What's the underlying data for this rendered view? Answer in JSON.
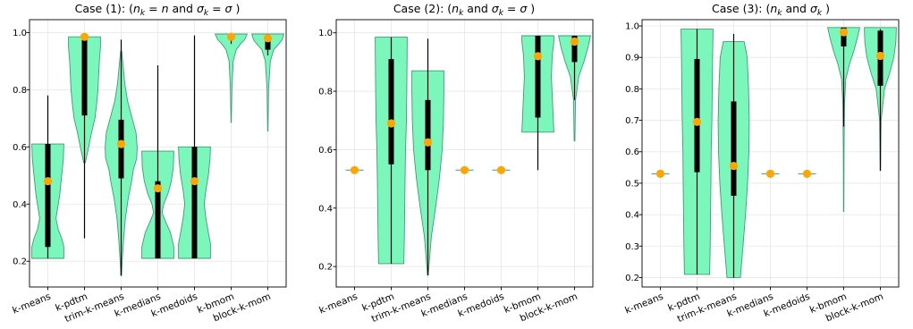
{
  "colors": {
    "violin_fill": "#7cf7bc",
    "violin_edge": "#3b9d74",
    "box": "#000000",
    "whisker": "#000000",
    "mean_marker": "#ffa500",
    "grid": "#e6e6e6",
    "axes": "#000000"
  },
  "chart_data": [
    {
      "type": "violin",
      "title": "Case (1): (n_k = n and σ_k = σ )",
      "title_parts": [
        {
          "t": "Case (1): (",
          "s": "n"
        },
        {
          "t": "n",
          "s": "i"
        },
        {
          "t": "k",
          "s": "sub"
        },
        {
          "t": " = ",
          "s": "n"
        },
        {
          "t": "n",
          "s": "i"
        },
        {
          "t": " and ",
          "s": "n"
        },
        {
          "t": "σ",
          "s": "i"
        },
        {
          "t": "k",
          "s": "sub"
        },
        {
          "t": " = ",
          "s": "n"
        },
        {
          "t": "σ",
          "s": "i"
        },
        {
          "t": " )",
          "s": "n"
        }
      ],
      "categories": [
        "k-means",
        "k-pdtm",
        "trim-k-means",
        "k-medians",
        "k-medoids",
        "k-bmom",
        "block-k-mom"
      ],
      "ylim": [
        0.11,
        1.045
      ],
      "yticks": [
        "0.2",
        "0.4",
        "0.6",
        "0.8",
        "1.0"
      ],
      "grid": true,
      "violins": [
        {
          "profile": [
            [
              0.21,
              0.95
            ],
            [
              0.25,
              0.95
            ],
            [
              0.28,
              0.82
            ],
            [
              0.31,
              0.62
            ],
            [
              0.35,
              0.48
            ],
            [
              0.38,
              0.56
            ],
            [
              0.43,
              0.7
            ],
            [
              0.5,
              0.82
            ],
            [
              0.56,
              0.92
            ],
            [
              0.61,
              0.95
            ]
          ],
          "q1": 0.25,
          "q3": 0.61,
          "min": 0.21,
          "max": 0.78,
          "mean": 0.48
        },
        {
          "profile": [
            [
              0.545,
              0.05
            ],
            [
              0.6,
              0.25
            ],
            [
              0.65,
              0.42
            ],
            [
              0.7,
              0.62
            ],
            [
              0.75,
              0.72
            ],
            [
              0.8,
              0.8
            ],
            [
              0.85,
              0.84
            ],
            [
              0.9,
              0.88
            ],
            [
              0.95,
              0.95
            ],
            [
              0.985,
              0.95
            ]
          ],
          "q1": 0.71,
          "q3": 0.975,
          "min": 0.28,
          "max": 0.99,
          "mean": 0.985
        },
        {
          "profile": [
            [
              0.15,
              0.02
            ],
            [
              0.2,
              0.06
            ],
            [
              0.28,
              0.15
            ],
            [
              0.35,
              0.25
            ],
            [
              0.42,
              0.42
            ],
            [
              0.48,
              0.62
            ],
            [
              0.52,
              0.72
            ],
            [
              0.56,
              0.92
            ],
            [
              0.6,
              0.95
            ],
            [
              0.65,
              0.88
            ],
            [
              0.7,
              0.65
            ],
            [
              0.76,
              0.38
            ],
            [
              0.82,
              0.22
            ],
            [
              0.88,
              0.12
            ],
            [
              0.935,
              0.03
            ]
          ],
          "q1": 0.49,
          "q3": 0.695,
          "min": 0.15,
          "max": 0.975,
          "mean": 0.61
        },
        {
          "profile": [
            [
              0.21,
              0.95
            ],
            [
              0.25,
              0.95
            ],
            [
              0.3,
              0.75
            ],
            [
              0.34,
              0.45
            ],
            [
              0.37,
              0.25
            ],
            [
              0.4,
              0.35
            ],
            [
              0.44,
              0.62
            ],
            [
              0.48,
              0.8
            ],
            [
              0.53,
              0.92
            ],
            [
              0.585,
              0.95
            ]
          ],
          "q1": 0.21,
          "q3": 0.48,
          "min": 0.21,
          "max": 0.885,
          "mean": 0.455
        },
        {
          "profile": [
            [
              0.21,
              0.95
            ],
            [
              0.26,
              0.95
            ],
            [
              0.3,
              0.82
            ],
            [
              0.35,
              0.68
            ],
            [
              0.4,
              0.58
            ],
            [
              0.45,
              0.68
            ],
            [
              0.5,
              0.82
            ],
            [
              0.56,
              0.92
            ],
            [
              0.6,
              0.95
            ]
          ],
          "q1": 0.21,
          "q3": 0.6,
          "min": 0.21,
          "max": 0.99,
          "mean": 0.48
        },
        {
          "profile": [
            [
              0.685,
              0.01
            ],
            [
              0.8,
              0.04
            ],
            [
              0.9,
              0.12
            ],
            [
              0.94,
              0.3
            ],
            [
              0.96,
              0.55
            ],
            [
              0.975,
              0.8
            ],
            [
              0.995,
              0.95
            ]
          ],
          "q1": 0.975,
          "q3": 0.99,
          "min": 0.96,
          "max": 0.995,
          "mean": 0.985
        },
        {
          "profile": [
            [
              0.655,
              0.01
            ],
            [
              0.8,
              0.04
            ],
            [
              0.9,
              0.15
            ],
            [
              0.94,
              0.35
            ],
            [
              0.96,
              0.65
            ],
            [
              0.975,
              0.85
            ],
            [
              0.995,
              0.95
            ]
          ],
          "q1": 0.94,
          "q3": 0.99,
          "min": 0.92,
          "max": 0.995,
          "mean": 0.98
        }
      ]
    },
    {
      "type": "violin",
      "title": "Case (2): (n_k and σ_k = σ )",
      "title_parts": [
        {
          "t": "Case (2): (",
          "s": "n"
        },
        {
          "t": "n",
          "s": "i"
        },
        {
          "t": "k",
          "s": "sub"
        },
        {
          "t": " and ",
          "s": "n"
        },
        {
          "t": "σ",
          "s": "i"
        },
        {
          "t": "k",
          "s": "sub"
        },
        {
          "t": " = ",
          "s": "n"
        },
        {
          "t": "σ",
          "s": "i"
        },
        {
          "t": " )",
          "s": "n"
        }
      ],
      "categories": [
        "k-means",
        "k-pdtm",
        "trim-k-means",
        "k-medians",
        "k-medoids",
        "k-bmom",
        "block-k-mom"
      ],
      "ylim": [
        0.13,
        1.045
      ],
      "yticks": [
        "0.2",
        "0.4",
        "0.6",
        "0.8",
        "1.0"
      ],
      "grid": true,
      "violins": [
        {
          "profile": [],
          "point": true,
          "mean": 0.53
        },
        {
          "profile": [
            [
              0.21,
              0.75
            ],
            [
              0.3,
              0.78
            ],
            [
              0.4,
              0.8
            ],
            [
              0.5,
              0.82
            ],
            [
              0.6,
              0.85
            ],
            [
              0.7,
              0.9
            ],
            [
              0.8,
              0.92
            ],
            [
              0.9,
              0.94
            ],
            [
              0.985,
              0.95
            ]
          ],
          "q1": 0.55,
          "q3": 0.91,
          "min": 0.21,
          "max": 0.985,
          "mean": 0.69
        },
        {
          "profile": [
            [
              0.17,
              0.02
            ],
            [
              0.3,
              0.2
            ],
            [
              0.4,
              0.45
            ],
            [
              0.5,
              0.68
            ],
            [
              0.6,
              0.85
            ],
            [
              0.7,
              0.92
            ],
            [
              0.8,
              0.95
            ],
            [
              0.87,
              0.95
            ]
          ],
          "q1": 0.53,
          "q3": 0.77,
          "min": 0.17,
          "max": 0.98,
          "mean": 0.625
        },
        {
          "profile": [],
          "point": true,
          "mean": 0.53
        },
        {
          "profile": [],
          "point": true,
          "mean": 0.53
        },
        {
          "profile": [
            [
              0.66,
              0.95
            ],
            [
              0.75,
              0.88
            ],
            [
              0.85,
              0.8
            ],
            [
              0.92,
              0.85
            ],
            [
              0.97,
              0.95
            ],
            [
              0.99,
              0.95
            ]
          ],
          "q1": 0.71,
          "q3": 0.99,
          "min": 0.53,
          "max": 0.99,
          "mean": 0.92
        },
        {
          "profile": [
            [
              0.63,
              0.02
            ],
            [
              0.77,
              0.06
            ],
            [
              0.85,
              0.25
            ],
            [
              0.9,
              0.55
            ],
            [
              0.95,
              0.8
            ],
            [
              0.99,
              0.95
            ]
          ],
          "q1": 0.9,
          "q3": 0.99,
          "min": 0.77,
          "max": 0.99,
          "mean": 0.97
        }
      ]
    },
    {
      "type": "violin",
      "title": "Case (3): (n_k and σ_k )",
      "title_parts": [
        {
          "t": "Case (3): (",
          "s": "n"
        },
        {
          "t": "n",
          "s": "i"
        },
        {
          "t": "k",
          "s": "sub"
        },
        {
          "t": " and ",
          "s": "n"
        },
        {
          "t": "σ",
          "s": "i"
        },
        {
          "t": "k",
          "s": "sub"
        },
        {
          "t": " )",
          "s": "n"
        }
      ],
      "categories": [
        "k-means",
        "k-pdtm",
        "trim-k-means",
        "k-medians",
        "k-medoids",
        "k-bmom",
        "block-k-mom"
      ],
      "ylim": [
        0.17,
        1.02
      ],
      "yticks": [
        "0.2",
        "0.3",
        "0.4",
        "0.5",
        "0.6",
        "0.7",
        "0.8",
        "0.9",
        "1.0"
      ],
      "grid": true,
      "violins": [
        {
          "profile": [],
          "point": true,
          "mean": 0.53
        },
        {
          "profile": [
            [
              0.21,
              0.75
            ],
            [
              0.3,
              0.78
            ],
            [
              0.4,
              0.8
            ],
            [
              0.5,
              0.82
            ],
            [
              0.6,
              0.84
            ],
            [
              0.7,
              0.88
            ],
            [
              0.8,
              0.9
            ],
            [
              0.9,
              0.92
            ],
            [
              0.99,
              0.95
            ]
          ],
          "q1": 0.535,
          "q3": 0.895,
          "min": 0.21,
          "max": 0.99,
          "mean": 0.695
        },
        {
          "profile": [
            [
              0.2,
              0.4
            ],
            [
              0.3,
              0.55
            ],
            [
              0.4,
              0.7
            ],
            [
              0.5,
              0.82
            ],
            [
              0.6,
              0.9
            ],
            [
              0.7,
              0.92
            ],
            [
              0.8,
              0.88
            ],
            [
              0.9,
              0.8
            ],
            [
              0.95,
              0.62
            ]
          ],
          "q1": 0.46,
          "q3": 0.76,
          "min": 0.2,
          "max": 0.975,
          "mean": 0.555
        },
        {
          "profile": [],
          "point": true,
          "mean": 0.53
        },
        {
          "profile": [],
          "point": true,
          "mean": 0.53
        },
        {
          "profile": [
            [
              0.41,
              0.01
            ],
            [
              0.6,
              0.02
            ],
            [
              0.75,
              0.05
            ],
            [
              0.83,
              0.12
            ],
            [
              0.88,
              0.35
            ],
            [
              0.92,
              0.6
            ],
            [
              0.96,
              0.8
            ],
            [
              0.995,
              0.95
            ]
          ],
          "q1": 0.935,
          "q3": 0.995,
          "min": 0.68,
          "max": 0.995,
          "mean": 0.98
        },
        {
          "profile": [
            [
              0.54,
              0.01
            ],
            [
              0.7,
              0.04
            ],
            [
              0.8,
              0.25
            ],
            [
              0.85,
              0.55
            ],
            [
              0.9,
              0.8
            ],
            [
              0.95,
              0.92
            ],
            [
              0.995,
              0.95
            ]
          ],
          "q1": 0.81,
          "q3": 0.985,
          "min": 0.54,
          "max": 0.99,
          "mean": 0.905
        }
      ]
    }
  ]
}
